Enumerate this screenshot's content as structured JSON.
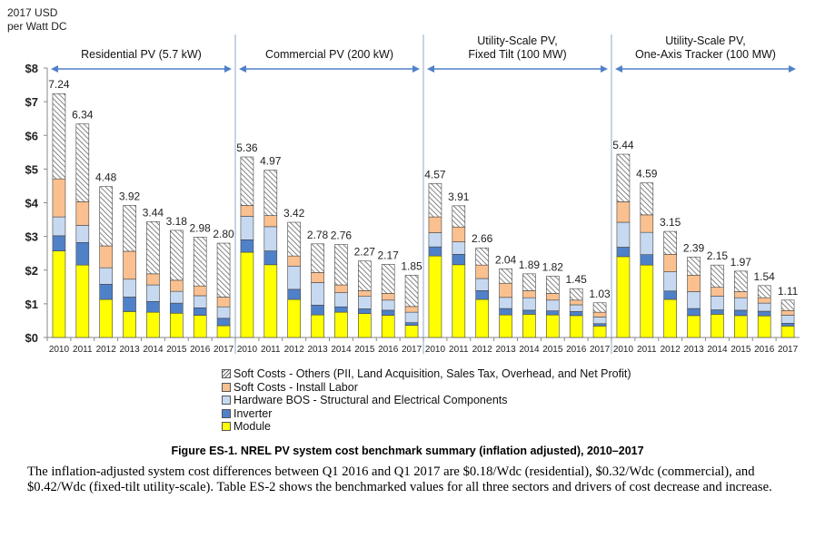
{
  "chart_data": {
    "type": "bar",
    "stacked": true,
    "ylabel": "2017 USD\nper Watt DC",
    "ylabel_lines": [
      "2017 USD",
      "per Watt DC"
    ],
    "ylim": [
      0,
      8
    ],
    "yticks": [
      "$0",
      "$1",
      "$2",
      "$3",
      "$4",
      "$5",
      "$6",
      "$7",
      "$8"
    ],
    "grid": false,
    "legend_position": "bottom",
    "years": [
      "2010",
      "2011",
      "2012",
      "2013",
      "2014",
      "2015",
      "2016",
      "2017"
    ],
    "components": [
      {
        "key": "module",
        "name": "Module",
        "color": "#ffff00"
      },
      {
        "key": "inverter",
        "name": "Inverter",
        "color": "#4f81c9"
      },
      {
        "key": "bos",
        "name": "Hardware BOS - Structural and Electrical Components",
        "color": "#c6d9f1"
      },
      {
        "key": "labor",
        "name": "Soft Costs - Install Labor",
        "color": "#fac090"
      },
      {
        "key": "others",
        "name": "Soft Costs - Others (PII, Land Acquisition, Sales Tax, Overhead, and Net Profit)",
        "color": "hatch"
      }
    ],
    "groups": [
      {
        "title_lines": [
          "Residential PV (5.7 kW)"
        ],
        "totals": [
          "7.24",
          "6.34",
          "4.48",
          "3.92",
          "3.44",
          "3.18",
          "2.98",
          "2.80"
        ],
        "module": [
          2.57,
          2.15,
          1.13,
          0.77,
          0.75,
          0.72,
          0.66,
          0.35
        ],
        "inverter": [
          0.45,
          0.67,
          0.45,
          0.43,
          0.32,
          0.3,
          0.22,
          0.22
        ],
        "bos": [
          0.56,
          0.51,
          0.49,
          0.53,
          0.49,
          0.35,
          0.36,
          0.34
        ],
        "labor": [
          1.13,
          0.7,
          0.65,
          0.83,
          0.33,
          0.33,
          0.29,
          0.29
        ],
        "others": [
          2.53,
          2.31,
          1.76,
          1.36,
          1.55,
          1.48,
          1.45,
          1.6
        ]
      },
      {
        "title_lines": [
          "Commercial PV (200 kW)"
        ],
        "totals": [
          "5.36",
          "4.97",
          "3.42",
          "2.78",
          "2.76",
          "2.27",
          "2.17",
          "1.85"
        ],
        "module": [
          2.53,
          2.16,
          1.13,
          0.67,
          0.75,
          0.71,
          0.66,
          0.36
        ],
        "inverter": [
          0.37,
          0.41,
          0.3,
          0.29,
          0.16,
          0.14,
          0.15,
          0.08
        ],
        "bos": [
          0.7,
          0.72,
          0.69,
          0.67,
          0.42,
          0.37,
          0.3,
          0.31
        ],
        "labor": [
          0.32,
          0.33,
          0.3,
          0.3,
          0.23,
          0.17,
          0.2,
          0.17
        ],
        "others": [
          1.44,
          1.35,
          1.0,
          0.85,
          1.2,
          0.88,
          0.86,
          0.93
        ]
      },
      {
        "title_lines": [
          "Utility-Scale PV,",
          "Fixed Tilt (100 MW)"
        ],
        "totals": [
          "4.57",
          "3.91",
          "2.66",
          "2.04",
          "1.89",
          "1.82",
          "1.45",
          "1.03"
        ],
        "module": [
          2.42,
          2.16,
          1.13,
          0.67,
          0.69,
          0.67,
          0.65,
          0.34
        ],
        "inverter": [
          0.27,
          0.31,
          0.26,
          0.19,
          0.12,
          0.12,
          0.12,
          0.07
        ],
        "bos": [
          0.42,
          0.37,
          0.36,
          0.33,
          0.37,
          0.32,
          0.2,
          0.2
        ],
        "labor": [
          0.47,
          0.44,
          0.4,
          0.42,
          0.21,
          0.2,
          0.14,
          0.14
        ],
        "others": [
          0.99,
          0.63,
          0.51,
          0.43,
          0.5,
          0.51,
          0.34,
          0.28
        ]
      },
      {
        "title_lines": [
          "Utility-Scale PV,",
          "One-Axis Tracker (100 MW)"
        ],
        "totals": [
          "5.44",
          "4.59",
          "3.15",
          "2.39",
          "2.15",
          "1.97",
          "1.54",
          "1.11"
        ],
        "module": [
          2.4,
          2.15,
          1.13,
          0.65,
          0.69,
          0.65,
          0.64,
          0.34
        ],
        "inverter": [
          0.28,
          0.31,
          0.25,
          0.21,
          0.13,
          0.16,
          0.14,
          0.08
        ],
        "bos": [
          0.74,
          0.66,
          0.57,
          0.5,
          0.41,
          0.37,
          0.24,
          0.24
        ],
        "labor": [
          0.61,
          0.52,
          0.52,
          0.49,
          0.26,
          0.18,
          0.16,
          0.14
        ],
        "others": [
          1.41,
          0.95,
          0.68,
          0.54,
          0.66,
          0.61,
          0.36,
          0.31
        ]
      }
    ]
  },
  "legend": {
    "others": "Soft Costs - Others (PII, Land Acquisition, Sales Tax, Overhead, and Net Profit)",
    "labor": "Soft Costs - Install Labor",
    "bos": "Hardware BOS - Structural and Electrical Components",
    "inverter": "Inverter",
    "module": "Module"
  },
  "caption": "Figure ES-1. NREL PV system cost benchmark summary (inflation adjusted), 2010–2017",
  "body_text": "The inflation-adjusted system cost differences between Q1 2016 and Q1 2017 are $0.18/Wdc (residential), $0.32/Wdc (commercial), and $0.42/Wdc (fixed-tilt utility-scale). Table ES-2 shows the benchmarked values for all three sectors and drivers of cost decrease and increase."
}
